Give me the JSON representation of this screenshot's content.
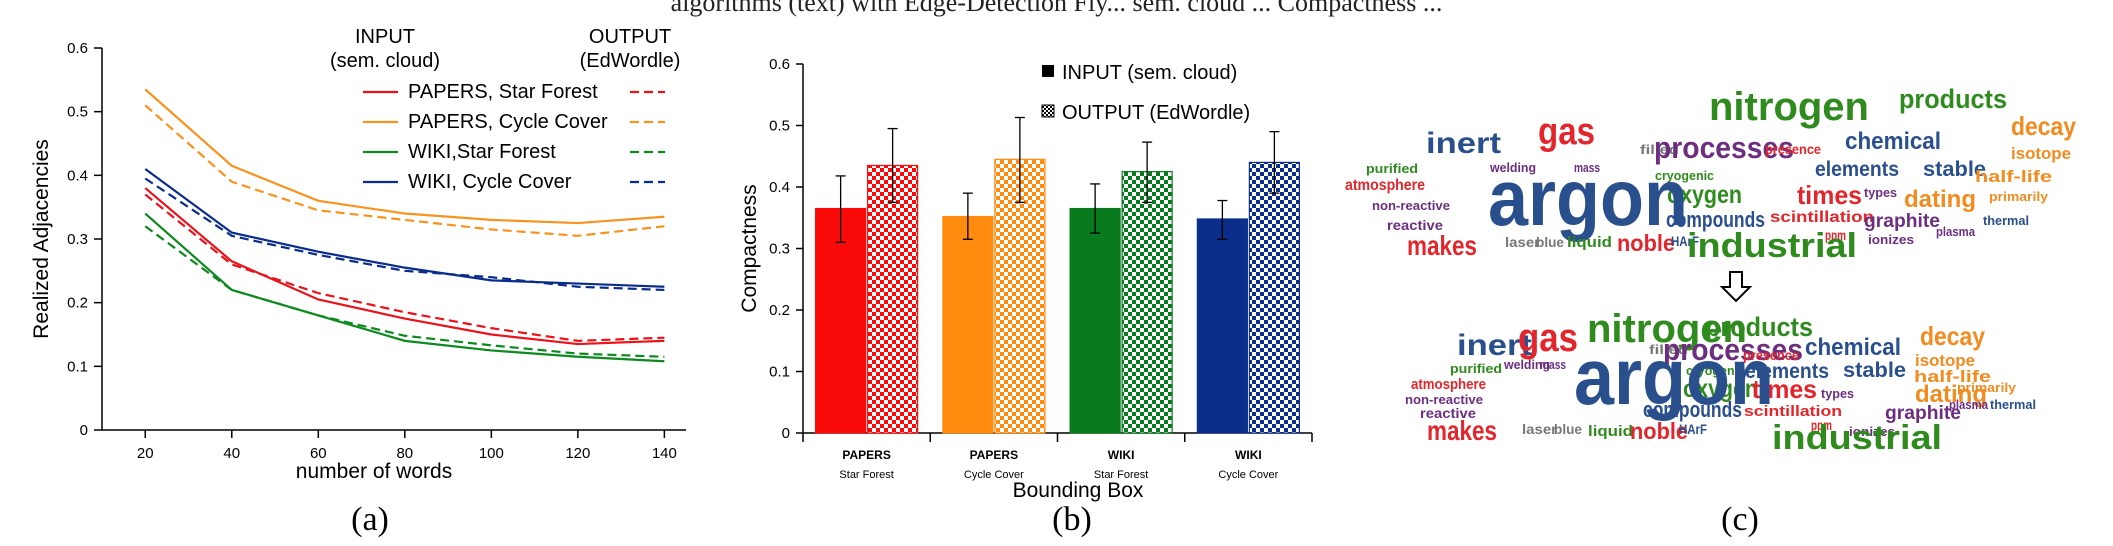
{
  "cut_caption": "algorithms (text) with Edge-Detection Fiy... sem. cloud ... Compactness ...",
  "panel_labels": {
    "a": "(a)",
    "b": "(b)",
    "c": "(c)"
  },
  "chart_data": [
    {
      "id": "a",
      "type": "line",
      "xlabel": "number of words",
      "ylabel": "Realized Adjacencies",
      "xlim": [
        10,
        145
      ],
      "ylim": [
        0,
        0.6
      ],
      "xticks": [
        20,
        40,
        60,
        80,
        100,
        120,
        140
      ],
      "yticks": [
        0,
        0.1,
        0.2,
        0.3,
        0.4,
        0.5,
        0.6
      ],
      "yticklabels": [
        "0",
        "0.1",
        "0.2",
        "0.3",
        "0.4",
        "0.5",
        "0.6"
      ],
      "legend_headers": {
        "input": [
          "INPUT",
          "(sem. cloud)"
        ],
        "output": [
          "OUTPUT",
          "(EdWordle)"
        ]
      },
      "legend_placement": "top-right",
      "x": [
        20,
        40,
        60,
        80,
        100,
        120,
        140
      ],
      "series": [
        {
          "name": "PAPERS, Star Forest",
          "color": "#e8131b",
          "input": [
            0.38,
            0.265,
            0.205,
            0.175,
            0.15,
            0.135,
            0.14
          ],
          "output": [
            0.37,
            0.26,
            0.215,
            0.185,
            0.16,
            0.14,
            0.145
          ]
        },
        {
          "name": "PAPERS, Cycle Cover",
          "color": "#f7931e",
          "input": [
            0.535,
            0.415,
            0.36,
            0.34,
            0.33,
            0.325,
            0.335
          ],
          "output": [
            0.51,
            0.39,
            0.345,
            0.33,
            0.315,
            0.305,
            0.32
          ]
        },
        {
          "name": "WIKI,Star Forest",
          "color": "#0c8a1f",
          "input": [
            0.34,
            0.22,
            0.18,
            0.14,
            0.125,
            0.115,
            0.108
          ],
          "output": [
            0.32,
            0.22,
            0.18,
            0.148,
            0.133,
            0.12,
            0.115
          ]
        },
        {
          "name": "WIKI, Cycle Cover",
          "color": "#0a2d8c",
          "input": [
            0.41,
            0.31,
            0.28,
            0.255,
            0.235,
            0.23,
            0.225
          ],
          "output": [
            0.395,
            0.305,
            0.275,
            0.25,
            0.24,
            0.225,
            0.22
          ]
        }
      ]
    },
    {
      "id": "b",
      "type": "bar",
      "xlabel": "Bounding Box",
      "ylabel": "Compactness",
      "ylim": [
        0,
        0.6
      ],
      "yticks": [
        0,
        0.1,
        0.2,
        0.3,
        0.4,
        0.5,
        0.6
      ],
      "yticklabels": [
        "0",
        "0.1",
        "0.2",
        "0.3",
        "0.4",
        "0.5",
        "0.6"
      ],
      "categories": [
        {
          "line1": "PAPERS",
          "line2": "Star Forest",
          "color": "#fb0a0a"
        },
        {
          "line1": "PAPERS",
          "line2": "Cycle Cover",
          "color": "#ff8c0f"
        },
        {
          "line1": "WIKI",
          "line2": "Star Forest",
          "color": "#0a7a1f"
        },
        {
          "line1": "WIKI",
          "line2": "Cycle Cover",
          "color": "#0a2e8a"
        }
      ],
      "legend": [
        "INPUT  (sem. cloud)",
        "OUTPUT (EdWordle)"
      ],
      "legend_placement": "top",
      "series": [
        {
          "name": "INPUT  (sem. cloud)",
          "pattern": "solid",
          "values": [
            0.365,
            0.352,
            0.365,
            0.348
          ],
          "err_low": [
            0.31,
            0.315,
            0.325,
            0.315
          ],
          "err_high": [
            0.418,
            0.39,
            0.405,
            0.378
          ]
        },
        {
          "name": "OUTPUT (EdWordle)",
          "pattern": "checker",
          "values": [
            0.435,
            0.445,
            0.425,
            0.44
          ],
          "err_low": [
            0.375,
            0.375,
            0.375,
            0.39
          ],
          "err_high": [
            0.495,
            0.513,
            0.473,
            0.49
          ]
        }
      ]
    }
  ],
  "word_cloud": {
    "arrow_icon": "down-arrow-icon",
    "input_words": [
      {
        "text": "nitrogen",
        "size": 40,
        "color": "#2f8b1e"
      },
      {
        "text": "products",
        "size": 27,
        "color": "#2f8b1e"
      },
      {
        "text": "gas",
        "size": 38,
        "color": "#e3262c"
      },
      {
        "text": "inert",
        "size": 30,
        "color": "#2a4f8d"
      },
      {
        "text": "filled",
        "size": 13,
        "color": "#777777"
      },
      {
        "text": "processes",
        "size": 31,
        "color": "#6d2e80"
      },
      {
        "text": "presence",
        "size": 14,
        "color": "#e3262c"
      },
      {
        "text": "chemical",
        "size": 24,
        "color": "#2a4f8d"
      },
      {
        "text": "decay",
        "size": 26,
        "color": "#f28b20"
      },
      {
        "text": "isotope",
        "size": 17,
        "color": "#f28b20"
      },
      {
        "text": "purified",
        "size": 13,
        "color": "#2f8b1e"
      },
      {
        "text": "welding",
        "size": 13,
        "color": "#6d2e80"
      },
      {
        "text": "mass",
        "size": 13,
        "color": "#6d2e80"
      },
      {
        "text": "elements",
        "size": 21,
        "color": "#2a4f8d"
      },
      {
        "text": "stable",
        "size": 21,
        "color": "#2a4f8d"
      },
      {
        "text": "half-life",
        "size": 17,
        "color": "#f28b20"
      },
      {
        "text": "atmosphere",
        "size": 16,
        "color": "#e3262c"
      },
      {
        "text": "cryogenic",
        "size": 13,
        "color": "#2f8b1e"
      },
      {
        "text": "oxygen",
        "size": 25,
        "color": "#2f8b1e"
      },
      {
        "text": "times",
        "size": 26,
        "color": "#e3262c"
      },
      {
        "text": "types",
        "size": 13,
        "color": "#6d2e80"
      },
      {
        "text": "argon",
        "size": 80,
        "color": "#2a4f8d"
      },
      {
        "text": "dating",
        "size": 24,
        "color": "#f28b20"
      },
      {
        "text": "primarily",
        "size": 13,
        "color": "#f28b20"
      },
      {
        "text": "non-reactive",
        "size": 13,
        "color": "#6d2e80"
      },
      {
        "text": "thermal",
        "size": 13,
        "color": "#2a4f8d"
      },
      {
        "text": "reactive",
        "size": 14,
        "color": "#6d2e80"
      },
      {
        "text": "compounds",
        "size": 22,
        "color": "#2a4f8d"
      },
      {
        "text": "scintillation",
        "size": 16,
        "color": "#e3262c"
      },
      {
        "text": "graphite",
        "size": 19,
        "color": "#6d2e80"
      },
      {
        "text": "ppm",
        "size": 14,
        "color": "#e3262c"
      },
      {
        "text": "ionizes",
        "size": 13,
        "color": "#6d2e80"
      },
      {
        "text": "plasma",
        "size": 13,
        "color": "#6d2e80"
      },
      {
        "text": "makes",
        "size": 28,
        "color": "#e3262c"
      },
      {
        "text": "laser",
        "size": 14,
        "color": "#777777"
      },
      {
        "text": "blue",
        "size": 14,
        "color": "#777777"
      },
      {
        "text": "liquid",
        "size": 15,
        "color": "#2f8b1e"
      },
      {
        "text": "noble",
        "size": 23,
        "color": "#e3262c"
      },
      {
        "text": "HArF",
        "size": 14,
        "color": "#2a4f8d"
      },
      {
        "text": "industrial",
        "size": 34,
        "color": "#2f8b1e"
      }
    ],
    "output_words": [
      {
        "text": "inert",
        "size": 30,
        "color": "#2a4f8d"
      },
      {
        "text": "gas",
        "size": 40,
        "color": "#e3262c"
      },
      {
        "text": "nitrogen",
        "size": 40,
        "color": "#2f8b1e"
      },
      {
        "text": "products",
        "size": 27,
        "color": "#2f8b1e"
      },
      {
        "text": "filled",
        "size": 13,
        "color": "#777777"
      },
      {
        "text": "processes",
        "size": 31,
        "color": "#6d2e80"
      },
      {
        "text": "presence",
        "size": 14,
        "color": "#e3262c"
      },
      {
        "text": "chemical",
        "size": 24,
        "color": "#2a4f8d"
      },
      {
        "text": "decay",
        "size": 26,
        "color": "#f28b20"
      },
      {
        "text": "isotope",
        "size": 17,
        "color": "#f28b20"
      },
      {
        "text": "purified",
        "size": 13,
        "color": "#2f8b1e"
      },
      {
        "text": "welding",
        "size": 13,
        "color": "#6d2e80"
      },
      {
        "text": "mass",
        "size": 13,
        "color": "#6d2e80"
      },
      {
        "text": "cryogenic",
        "size": 13,
        "color": "#2f8b1e"
      },
      {
        "text": "elements",
        "size": 21,
        "color": "#2a4f8d"
      },
      {
        "text": "stable",
        "size": 21,
        "color": "#2a4f8d"
      },
      {
        "text": "half-life",
        "size": 17,
        "color": "#f28b20"
      },
      {
        "text": "atmosphere",
        "size": 15,
        "color": "#e3262c"
      },
      {
        "text": "oxygen",
        "size": 25,
        "color": "#2f8b1e"
      },
      {
        "text": "times",
        "size": 26,
        "color": "#e3262c"
      },
      {
        "text": "types",
        "size": 13,
        "color": "#6d2e80"
      },
      {
        "text": "dating",
        "size": 24,
        "color": "#f28b20"
      },
      {
        "text": "primarily",
        "size": 13,
        "color": "#f28b20"
      },
      {
        "text": "non-reactive",
        "size": 13,
        "color": "#6d2e80"
      },
      {
        "text": "argon",
        "size": 80,
        "color": "#2a4f8d"
      },
      {
        "text": "plasma",
        "size": 13,
        "color": "#6d2e80"
      },
      {
        "text": "thermal",
        "size": 13,
        "color": "#2a4f8d"
      },
      {
        "text": "reactive",
        "size": 14,
        "color": "#6d2e80"
      },
      {
        "text": "compounds",
        "size": 22,
        "color": "#2a4f8d"
      },
      {
        "text": "scintillation",
        "size": 15,
        "color": "#e3262c"
      },
      {
        "text": "graphite",
        "size": 19,
        "color": "#6d2e80"
      },
      {
        "text": "ppm",
        "size": 14,
        "color": "#e3262c"
      },
      {
        "text": "ionizes",
        "size": 13,
        "color": "#6d2e80"
      },
      {
        "text": "makes",
        "size": 28,
        "color": "#e3262c"
      },
      {
        "text": "laser",
        "size": 14,
        "color": "#777777"
      },
      {
        "text": "blue",
        "size": 14,
        "color": "#777777"
      },
      {
        "text": "liquid",
        "size": 15,
        "color": "#2f8b1e"
      },
      {
        "text": "noble",
        "size": 23,
        "color": "#e3262c"
      },
      {
        "text": "HArF",
        "size": 14,
        "color": "#2a4f8d"
      },
      {
        "text": "industrial",
        "size": 34,
        "color": "#2f8b1e"
      }
    ]
  }
}
